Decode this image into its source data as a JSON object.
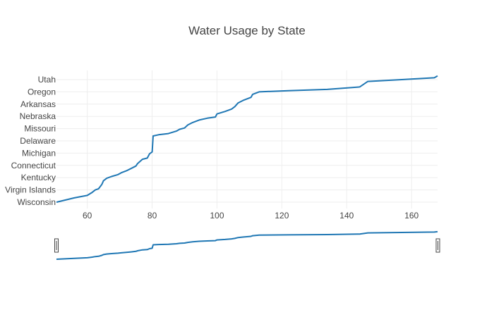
{
  "chart_data": {
    "type": "line",
    "title": "Water Usage by State",
    "xlabel": "",
    "ylabel": "",
    "xlim": [
      50.5,
      168
    ],
    "x_ticks": [
      60,
      80,
      100,
      120,
      140,
      160
    ],
    "categories": [
      "Wisconsin",
      "Virgin Islands",
      "Kentucky",
      "Connecticut",
      "Michigan",
      "Delaware",
      "Missouri",
      "Nebraska",
      "Arkansas",
      "Oregon",
      "Utah"
    ],
    "grid": true,
    "legend": "none",
    "range_slider": true,
    "line_color": "#1f77b4",
    "series": [
      {
        "values": [
          [
            50.5,
            0.0
          ],
          [
            56,
            0.35
          ],
          [
            60,
            0.55
          ],
          [
            61.5,
            0.8
          ],
          [
            62.5,
            1.0
          ],
          [
            63.5,
            1.1
          ],
          [
            64.5,
            1.45
          ],
          [
            65,
            1.75
          ],
          [
            66,
            1.95
          ],
          [
            67.5,
            2.1
          ],
          [
            69.5,
            2.25
          ],
          [
            70.5,
            2.4
          ],
          [
            72,
            2.55
          ],
          [
            73.5,
            2.75
          ],
          [
            75,
            2.95
          ],
          [
            75.5,
            3.15
          ],
          [
            77,
            3.5
          ],
          [
            78.5,
            3.6
          ],
          [
            79.2,
            3.95
          ],
          [
            80,
            4.1
          ],
          [
            80.3,
            5.4
          ],
          [
            82,
            5.5
          ],
          [
            85,
            5.6
          ],
          [
            87.5,
            5.8
          ],
          [
            88.5,
            5.95
          ],
          [
            90,
            6.05
          ],
          [
            91,
            6.3
          ],
          [
            92.5,
            6.5
          ],
          [
            94.5,
            6.7
          ],
          [
            97,
            6.85
          ],
          [
            99.5,
            6.95
          ],
          [
            100,
            7.2
          ],
          [
            102.5,
            7.4
          ],
          [
            104.5,
            7.6
          ],
          [
            105.5,
            7.8
          ],
          [
            106.5,
            8.1
          ],
          [
            108,
            8.3
          ],
          [
            110.5,
            8.55
          ],
          [
            111,
            8.8
          ],
          [
            113,
            9.0
          ],
          [
            122,
            9.1
          ],
          [
            134,
            9.2
          ],
          [
            144,
            9.4
          ],
          [
            146.5,
            9.85
          ],
          [
            157,
            10.0
          ],
          [
            167,
            10.15
          ],
          [
            168,
            10.3
          ]
        ]
      }
    ]
  }
}
